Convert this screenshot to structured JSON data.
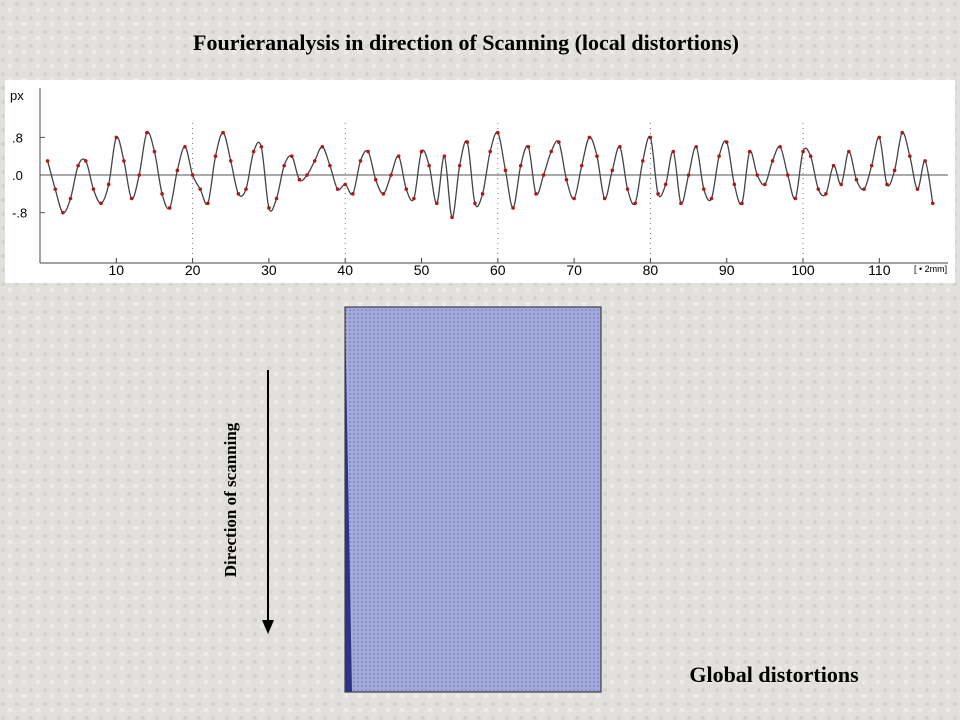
{
  "chart_data": {
    "type": "line",
    "title": "Fourieranalysis in direction of Scanning (local distortions)",
    "ylabel": "px",
    "xlabel": "[ • 2mm]",
    "xlim": [
      0,
      119
    ],
    "ylim": [
      -1.7,
      1.85
    ],
    "xticks": [
      10,
      20,
      30,
      40,
      50,
      60,
      70,
      80,
      90,
      100,
      110
    ],
    "yticks": [
      {
        "value": 0.8,
        "label": ".8"
      },
      {
        "value": 0,
        "label": ".0"
      },
      {
        "value": -0.8,
        "label": "-.8"
      }
    ],
    "grid": true,
    "series": [
      {
        "color": "#444444",
        "point_color": "#b01818",
        "x": [
          1,
          2,
          3,
          4,
          5,
          6,
          7,
          8,
          9,
          10,
          11,
          12,
          13,
          14,
          15,
          16,
          17,
          18,
          19,
          20,
          21,
          22,
          23,
          24,
          25,
          26,
          27,
          28,
          29,
          30,
          31,
          32,
          33,
          34,
          35,
          36,
          37,
          38,
          39,
          40,
          41,
          42,
          43,
          44,
          45,
          46,
          47,
          48,
          49,
          50,
          51,
          52,
          53,
          54,
          55,
          56,
          57,
          58,
          59,
          60,
          61,
          62,
          63,
          64,
          65,
          66,
          67,
          68,
          69,
          70,
          71,
          72,
          73,
          74,
          75,
          76,
          77,
          78,
          79,
          80,
          81,
          82,
          83,
          84,
          85,
          86,
          87,
          88,
          89,
          90,
          91,
          92,
          93,
          94,
          95,
          96,
          97,
          98,
          99,
          100,
          101,
          102,
          103,
          104,
          105,
          106,
          107,
          108,
          109,
          110,
          111,
          112,
          113,
          114,
          115,
          116,
          117
        ],
        "values": [
          0.3,
          -0.3,
          -0.8,
          -0.5,
          0.2,
          0.3,
          -0.3,
          -0.6,
          -0.2,
          0.8,
          0.3,
          -0.5,
          0.0,
          0.9,
          0.5,
          -0.4,
          -0.7,
          0.1,
          0.6,
          0.0,
          -0.3,
          -0.6,
          0.4,
          0.9,
          0.3,
          -0.4,
          -0.3,
          0.5,
          0.6,
          -0.7,
          -0.5,
          0.2,
          0.4,
          -0.1,
          0.0,
          0.3,
          0.6,
          0.2,
          -0.3,
          -0.2,
          -0.4,
          0.3,
          0.5,
          -0.1,
          -0.4,
          0.0,
          0.4,
          -0.3,
          -0.5,
          0.5,
          0.2,
          -0.6,
          0.4,
          -0.9,
          0.2,
          0.7,
          -0.6,
          -0.4,
          0.5,
          0.9,
          0.1,
          -0.7,
          0.2,
          0.6,
          -0.4,
          0.0,
          0.5,
          0.7,
          -0.1,
          -0.5,
          0.2,
          0.8,
          0.4,
          -0.5,
          0.1,
          0.6,
          -0.3,
          -0.6,
          0.3,
          0.8,
          -0.4,
          -0.2,
          0.5,
          -0.6,
          0.0,
          0.6,
          -0.3,
          -0.5,
          0.4,
          0.7,
          -0.2,
          -0.6,
          0.5,
          0.0,
          -0.2,
          0.3,
          0.6,
          0.0,
          -0.5,
          0.5,
          0.4,
          -0.3,
          -0.4,
          0.2,
          -0.2,
          0.5,
          -0.1,
          -0.3,
          0.2,
          0.8,
          -0.2,
          0.1,
          0.9,
          0.4,
          -0.3,
          0.3,
          -0.6
        ]
      }
    ]
  },
  "slide": {
    "scan_direction": "Direction of scanning",
    "caption": "Global distortions"
  }
}
